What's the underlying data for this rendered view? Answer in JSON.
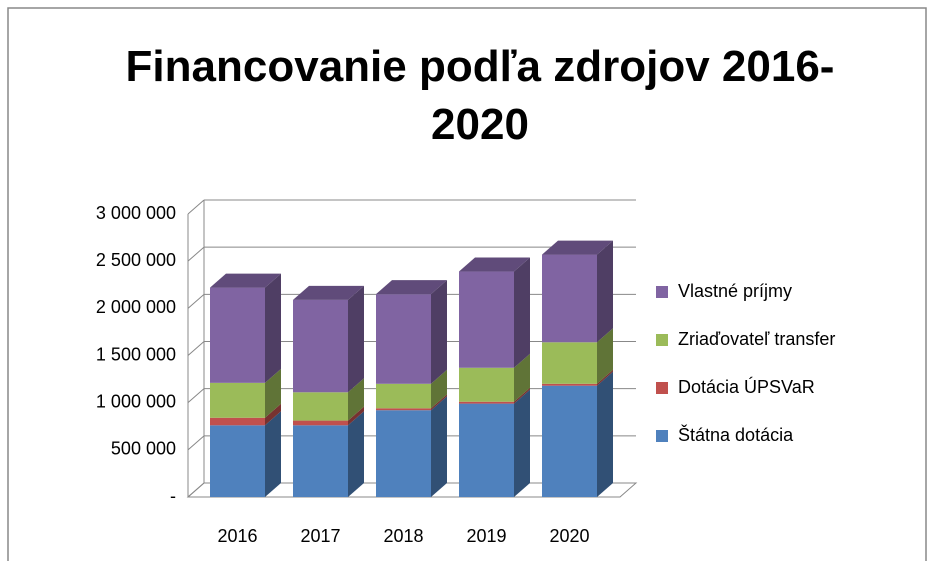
{
  "chart_data": {
    "type": "bar",
    "stacked": true,
    "title": "Financovanie podľa zdrojov 2016-2020",
    "categories": [
      "2016",
      "2017",
      "2018",
      "2019",
      "2020"
    ],
    "series": [
      {
        "name": "Štátna dotácia",
        "color": "#4f81bd",
        "values": [
          760000,
          760000,
          920000,
          990000,
          1180000
        ]
      },
      {
        "name": "Dotácia ÚPSVaR",
        "color": "#c0504d",
        "values": [
          80000,
          50000,
          20000,
          20000,
          20000
        ]
      },
      {
        "name": "Zriaďovateľ transfer",
        "color": "#9bbb59",
        "values": [
          370000,
          300000,
          260000,
          360000,
          440000
        ]
      },
      {
        "name": "Vlastné príjmy",
        "color": "#8064a2",
        "values": [
          1010000,
          980000,
          950000,
          1020000,
          930000
        ]
      }
    ],
    "ylim": [
      0,
      3000000
    ],
    "yticks": [
      {
        "value": 0,
        "label": "-"
      },
      {
        "value": 500000,
        "label": "500 000"
      },
      {
        "value": 1000000,
        "label": "1 000 000"
      },
      {
        "value": 1500000,
        "label": "1 500 000"
      },
      {
        "value": 2000000,
        "label": "2 000 000"
      },
      {
        "value": 2500000,
        "label": "2 500 000"
      },
      {
        "value": 3000000,
        "label": "3 000 000"
      }
    ],
    "grid": true,
    "legend": "right"
  }
}
